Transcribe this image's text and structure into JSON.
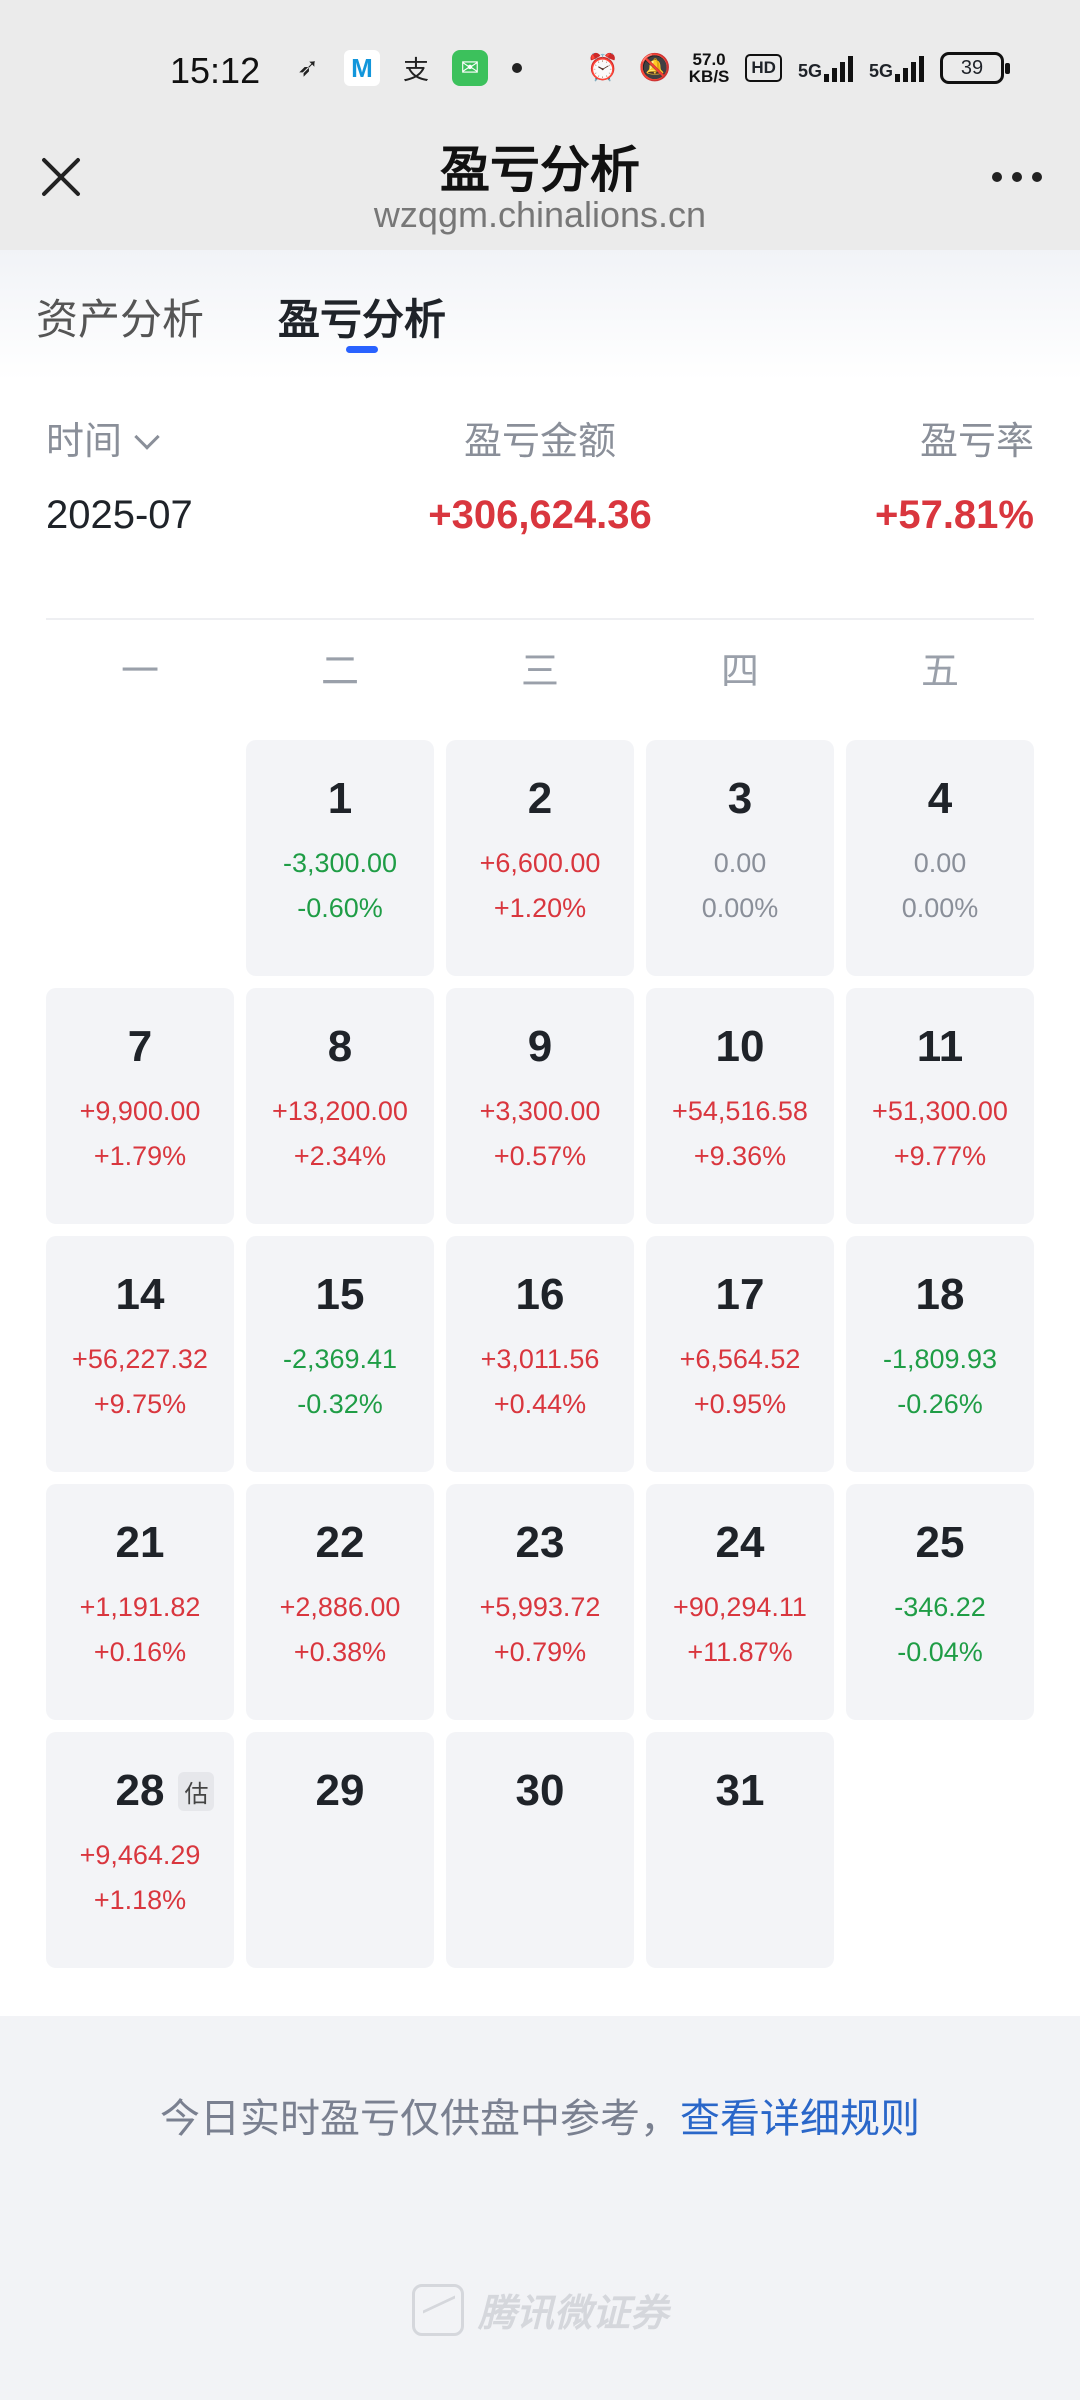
{
  "status_bar": {
    "time": "15:12",
    "net_speed_value": "57.0",
    "net_speed_unit": "KB/S",
    "hd_label": "HD",
    "signal_1": "5G",
    "signal_2": "5G",
    "battery": "39",
    "icons": [
      "feather-app-icon",
      "m-app-icon",
      "alipay-icon",
      "message-app-icon",
      "alarm-icon",
      "mute-icon"
    ]
  },
  "nav": {
    "title": "盈亏分析",
    "subtitle": "wzqgm.chinalions.cn"
  },
  "tabs": [
    {
      "label": "资产分析",
      "active": false
    },
    {
      "label": "盈亏分析",
      "active": true
    }
  ],
  "summary": {
    "time_label": "时间",
    "time_value": "2025-07",
    "amount_label": "盈亏金额",
    "amount_value": "+306,624.36",
    "rate_label": "盈亏率",
    "rate_value": "+57.81%"
  },
  "weekdays": [
    "一",
    "二",
    "三",
    "四",
    "五"
  ],
  "calendar": [
    {
      "day": "1",
      "amount": "-3,300.00",
      "pct": "-0.60%",
      "trend": "down"
    },
    {
      "day": "2",
      "amount": "+6,600.00",
      "pct": "+1.20%",
      "trend": "up"
    },
    {
      "day": "3",
      "amount": "0.00",
      "pct": "0.00%",
      "trend": "flat"
    },
    {
      "day": "4",
      "amount": "0.00",
      "pct": "0.00%",
      "trend": "flat"
    },
    {
      "day": "7",
      "amount": "+9,900.00",
      "pct": "+1.79%",
      "trend": "up"
    },
    {
      "day": "8",
      "amount": "+13,200.00",
      "pct": "+2.34%",
      "trend": "up"
    },
    {
      "day": "9",
      "amount": "+3,300.00",
      "pct": "+0.57%",
      "trend": "up"
    },
    {
      "day": "10",
      "amount": "+54,516.58",
      "pct": "+9.36%",
      "trend": "up"
    },
    {
      "day": "11",
      "amount": "+51,300.00",
      "pct": "+9.77%",
      "trend": "up"
    },
    {
      "day": "14",
      "amount": "+56,227.32",
      "pct": "+9.75%",
      "trend": "up"
    },
    {
      "day": "15",
      "amount": "-2,369.41",
      "pct": "-0.32%",
      "trend": "down"
    },
    {
      "day": "16",
      "amount": "+3,011.56",
      "pct": "+0.44%",
      "trend": "up"
    },
    {
      "day": "17",
      "amount": "+6,564.52",
      "pct": "+0.95%",
      "trend": "up"
    },
    {
      "day": "18",
      "amount": "-1,809.93",
      "pct": "-0.26%",
      "trend": "down"
    },
    {
      "day": "21",
      "amount": "+1,191.82",
      "pct": "+0.16%",
      "trend": "up"
    },
    {
      "day": "22",
      "amount": "+2,886.00",
      "pct": "+0.38%",
      "trend": "up"
    },
    {
      "day": "23",
      "amount": "+5,993.72",
      "pct": "+0.79%",
      "trend": "up"
    },
    {
      "day": "24",
      "amount": "+90,294.11",
      "pct": "+11.87%",
      "trend": "up"
    },
    {
      "day": "25",
      "amount": "-346.22",
      "pct": "-0.04%",
      "trend": "down"
    },
    {
      "day": "28",
      "amount": "+9,464.29",
      "pct": "+1.18%",
      "trend": "up",
      "badge": "估"
    },
    {
      "day": "29",
      "amount": "",
      "pct": "",
      "trend": "none"
    },
    {
      "day": "30",
      "amount": "",
      "pct": "",
      "trend": "none"
    },
    {
      "day": "31",
      "amount": "",
      "pct": "",
      "trend": "none"
    }
  ],
  "footer": {
    "disclaimer": "今日实时盈亏仅供盘中参考，",
    "rules_link": "查看详细规则",
    "brand": "腾讯微证券"
  },
  "colors": {
    "up": "#d9363e",
    "down": "#1f9d46",
    "flat": "#8a8f99",
    "accent": "#2962ff",
    "link": "#2a67c9"
  }
}
